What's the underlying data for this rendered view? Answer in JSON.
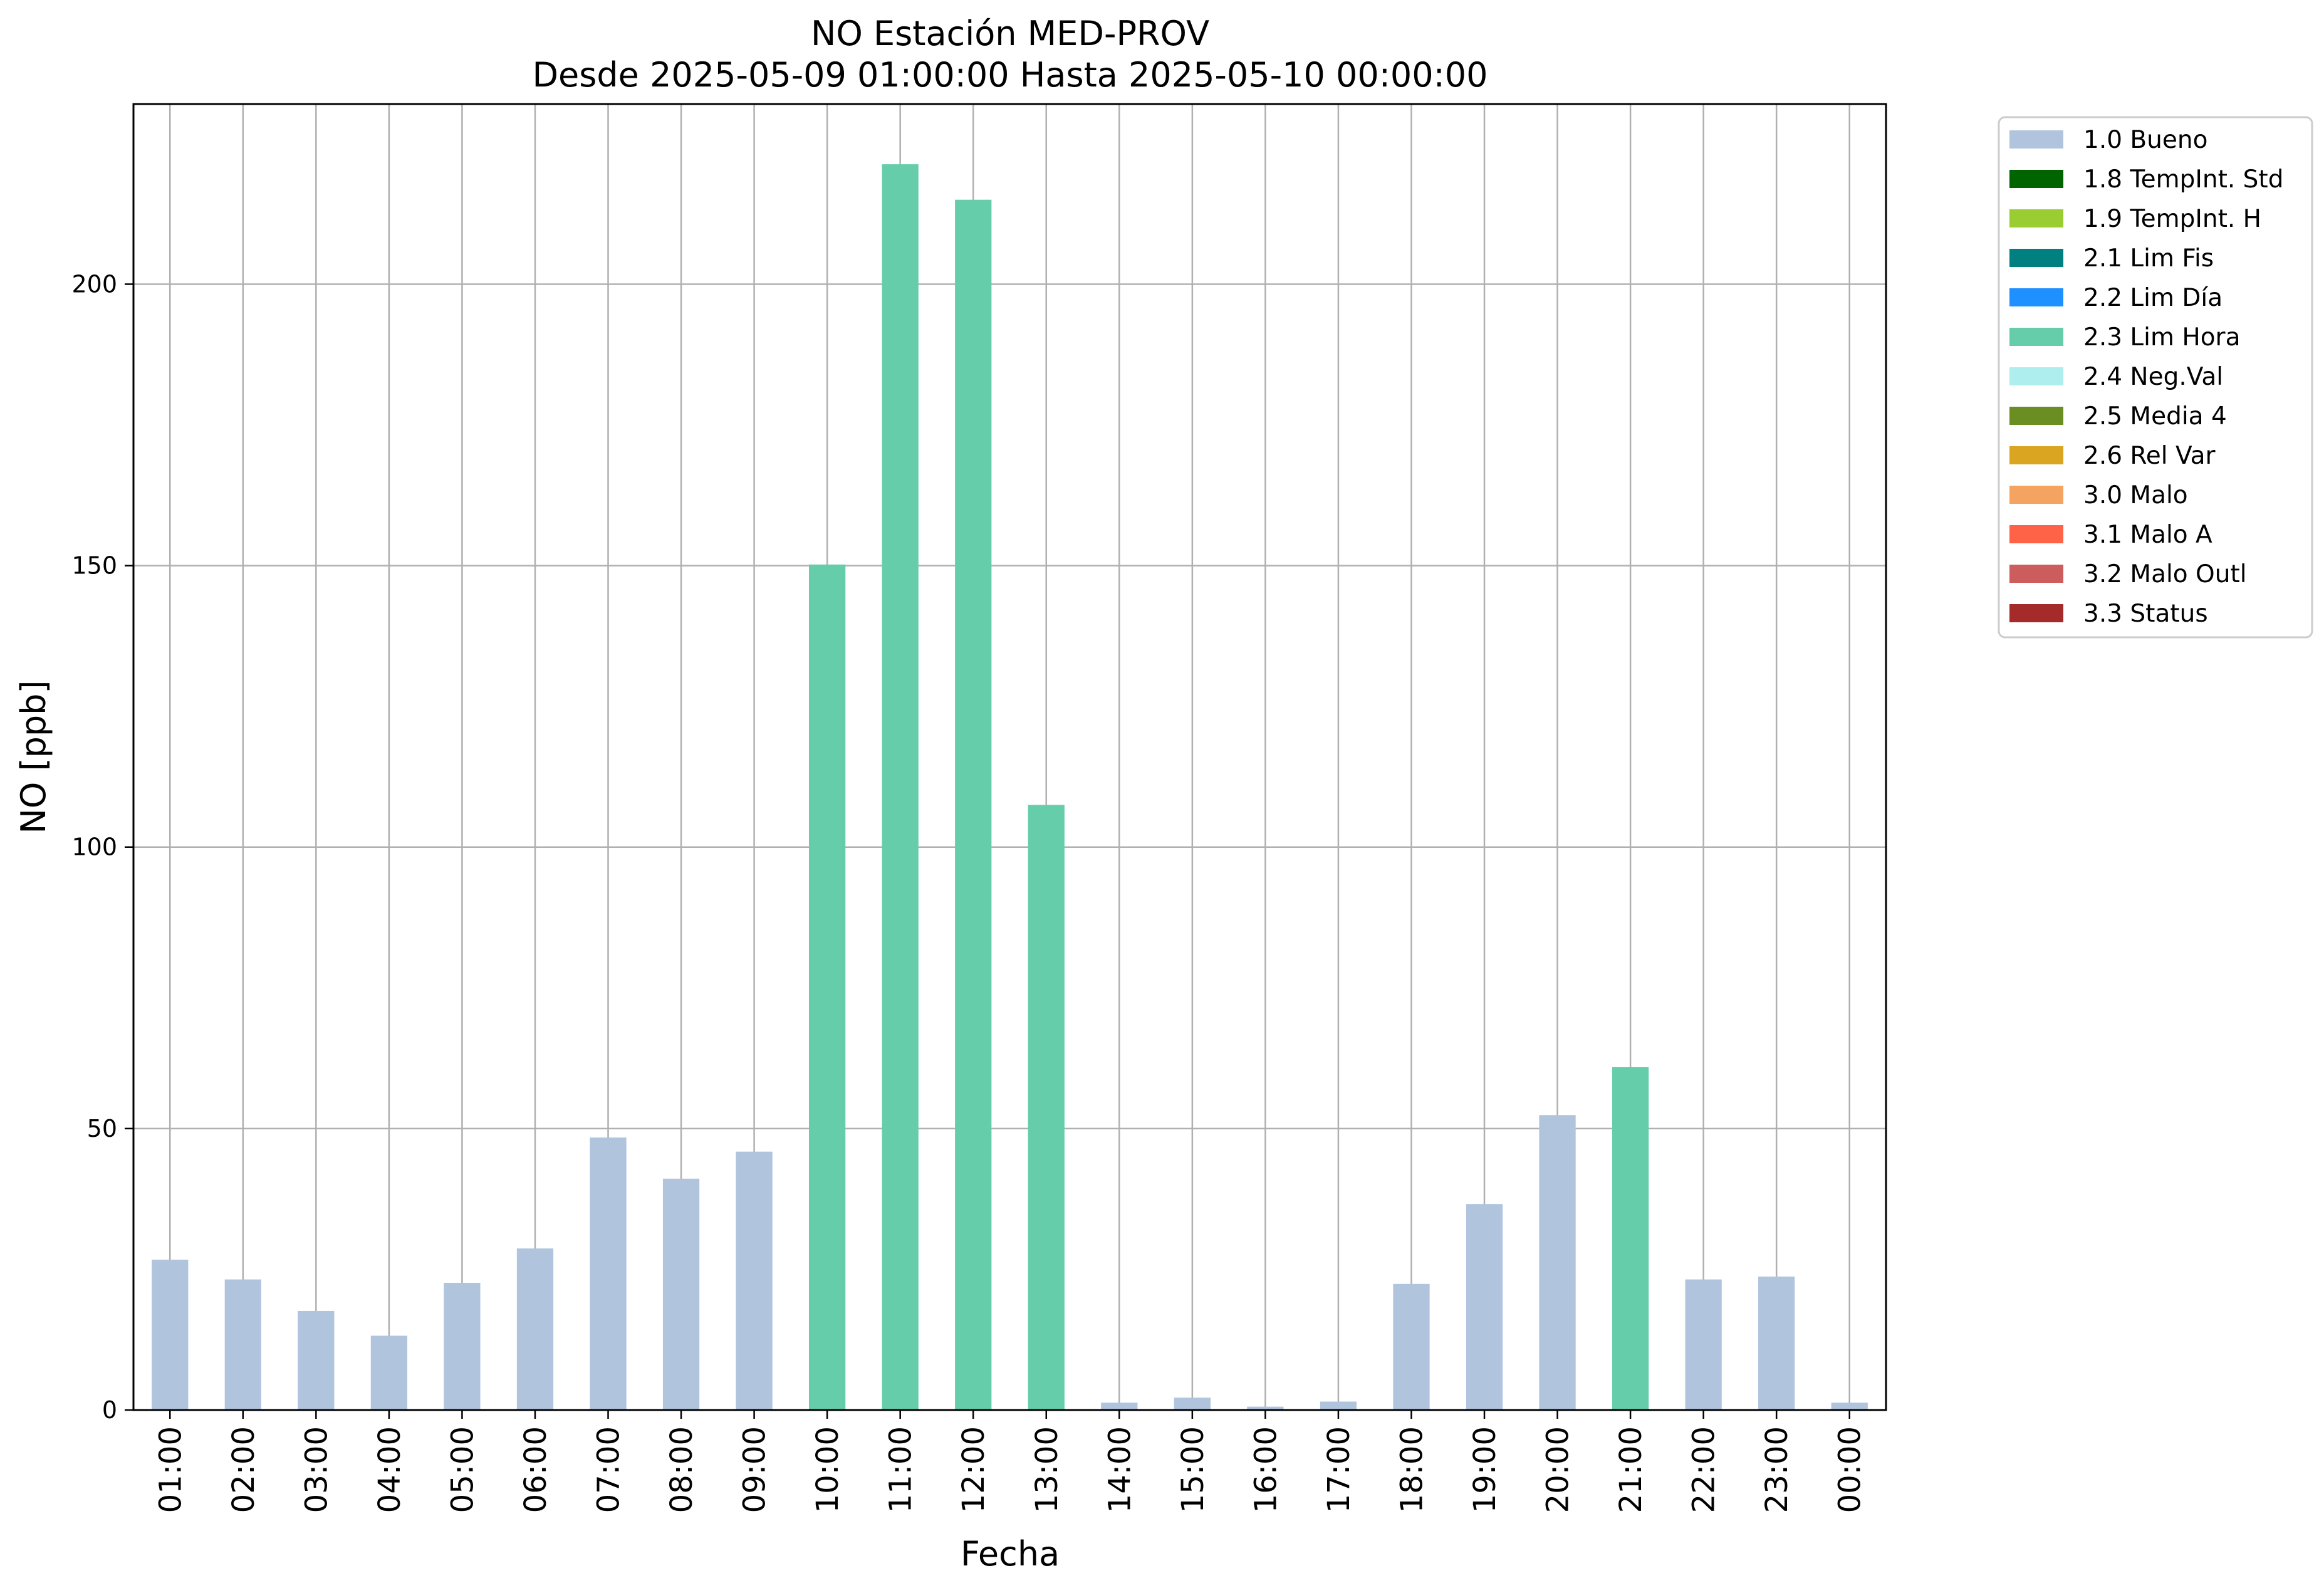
{
  "chart_data": {
    "type": "bar",
    "title": "NO Estación MED-PROV",
    "subtitle": "Desde 2025-05-09 01:00:00 Hasta 2025-05-10 00:00:00",
    "xlabel": "Fecha",
    "ylabel": "NO [ppb]",
    "ylim": [
      0,
      232
    ],
    "yticks": [
      0,
      50,
      100,
      150,
      200
    ],
    "grid": true,
    "legend_position": "outside-right-top",
    "categories": [
      "01:00",
      "02:00",
      "03:00",
      "04:00",
      "05:00",
      "06:00",
      "07:00",
      "08:00",
      "09:00",
      "10:00",
      "11:00",
      "12:00",
      "13:00",
      "14:00",
      "15:00",
      "16:00",
      "17:00",
      "18:00",
      "19:00",
      "20:00",
      "21:00",
      "22:00",
      "23:00",
      "00:00"
    ],
    "values": [
      26.7,
      23.2,
      17.6,
      13.2,
      22.6,
      28.7,
      48.4,
      41.1,
      45.9,
      150.2,
      221.3,
      215.0,
      107.5,
      1.3,
      2.2,
      0.6,
      1.5,
      22.4,
      36.6,
      52.4,
      60.9,
      23.2,
      23.7,
      1.3
    ],
    "flags": [
      "1.0 Bueno",
      "1.0 Bueno",
      "1.0 Bueno",
      "1.0 Bueno",
      "1.0 Bueno",
      "1.0 Bueno",
      "1.0 Bueno",
      "1.0 Bueno",
      "1.0 Bueno",
      "2.3 Lim Hora",
      "2.3 Lim Hora",
      "2.3 Lim Hora",
      "2.3 Lim Hora",
      "1.0 Bueno",
      "1.0 Bueno",
      "1.0 Bueno",
      "1.0 Bueno",
      "1.0 Bueno",
      "1.0 Bueno",
      "1.0 Bueno",
      "2.3 Lim Hora",
      "1.0 Bueno",
      "1.0 Bueno",
      "1.0 Bueno"
    ],
    "legend": [
      {
        "label": "1.0 Bueno",
        "color": "#b0c4de"
      },
      {
        "label": "1.8 TempInt. Std",
        "color": "#006400"
      },
      {
        "label": "1.9 TempInt. H",
        "color": "#9acd32"
      },
      {
        "label": "2.1 Lim Fis",
        "color": "#008080"
      },
      {
        "label": "2.2 Lim Día",
        "color": "#1e90ff"
      },
      {
        "label": "2.3 Lim Hora",
        "color": "#66cdaa"
      },
      {
        "label": "2.4 Neg.Val",
        "color": "#afeeee"
      },
      {
        "label": "2.5 Media 4",
        "color": "#6b8e23"
      },
      {
        "label": "2.6 Rel Var",
        "color": "#daa520"
      },
      {
        "label": "3.0 Malo",
        "color": "#f4a460"
      },
      {
        "label": "3.1 Malo A",
        "color": "#ff6347"
      },
      {
        "label": "3.2 Malo Outl",
        "color": "#cd5c5c"
      },
      {
        "label": "3.3 Status",
        "color": "#a52a2a"
      }
    ]
  }
}
